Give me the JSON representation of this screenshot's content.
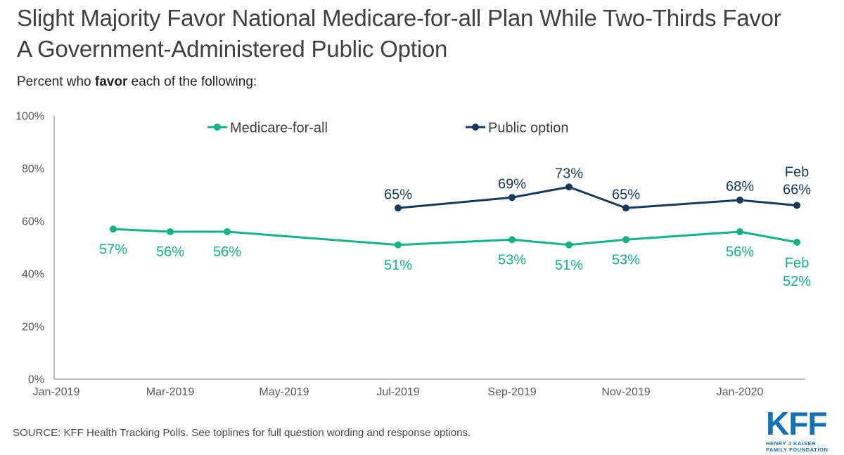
{
  "page": {
    "title": "Slight Majority Favor National Medicare-for-all Plan While Two-Thirds Favor A Government-Administered Public Option",
    "subtitle_prefix": "Percent who ",
    "subtitle_bold": "favor",
    "subtitle_suffix": " each of the following:",
    "source": "SOURCE: KFF Health Tracking Polls. See toplines for full question wording and response options.",
    "logo": {
      "acronym": "KFF",
      "line1": "HENRY J KAISER",
      "line2": "FAMILY FOUNDATION",
      "color": "#1371b6"
    }
  },
  "colors": {
    "medicare_green": "#0eb483",
    "public_navy": "#17395e",
    "axis_line": "#a6a6a6",
    "axis_text": "#595959",
    "legend_text": "#3d3d3d"
  },
  "chart_data": {
    "type": "line",
    "title": "Percent who favor each of the following",
    "xlabel": "",
    "ylabel": "",
    "ylim": [
      0,
      100
    ],
    "grid": false,
    "legend_position": "top",
    "x_tick_labels": [
      "Jan-2019",
      "Mar-2019",
      "May-2019",
      "Jul-2019",
      "Sep-2019",
      "Nov-2019",
      "Jan-2020"
    ],
    "y_tick_labels": [
      "0%",
      "20%",
      "40%",
      "60%",
      "80%",
      "100%"
    ],
    "series": [
      {
        "name": "Medicare-for-all",
        "color": "#0eb483",
        "label_side": "below",
        "points": [
          {
            "x": "Feb-2019",
            "value": 57,
            "label": "57%"
          },
          {
            "x": "Mar-2019",
            "value": 56,
            "label": "56%"
          },
          {
            "x": "Apr-2019",
            "value": 56,
            "label": "56%"
          },
          {
            "x": "Jul-2019",
            "value": 51,
            "label": "51%"
          },
          {
            "x": "Sep-2019",
            "value": 53,
            "label": "53%"
          },
          {
            "x": "Oct-2019",
            "value": 51,
            "label": "51%"
          },
          {
            "x": "Nov-2019",
            "value": 53,
            "label": "53%"
          },
          {
            "x": "Jan-2020",
            "value": 56,
            "label": "56%"
          },
          {
            "x": "Feb-2020",
            "value": 52,
            "label": [
              "Feb",
              "52%"
            ]
          }
        ]
      },
      {
        "name": "Public option",
        "color": "#17395e",
        "label_side": "above",
        "points": [
          {
            "x": "Jul-2019",
            "value": 65,
            "label": "65%"
          },
          {
            "x": "Sep-2019",
            "value": 69,
            "label": "69%"
          },
          {
            "x": "Oct-2019",
            "value": 73,
            "label": "73%"
          },
          {
            "x": "Nov-2019",
            "value": 65,
            "label": "65%"
          },
          {
            "x": "Jan-2020",
            "value": 68,
            "label": "68%"
          },
          {
            "x": "Feb-2020",
            "value": 66,
            "label": [
              "Feb",
              "66%"
            ]
          }
        ]
      }
    ]
  }
}
